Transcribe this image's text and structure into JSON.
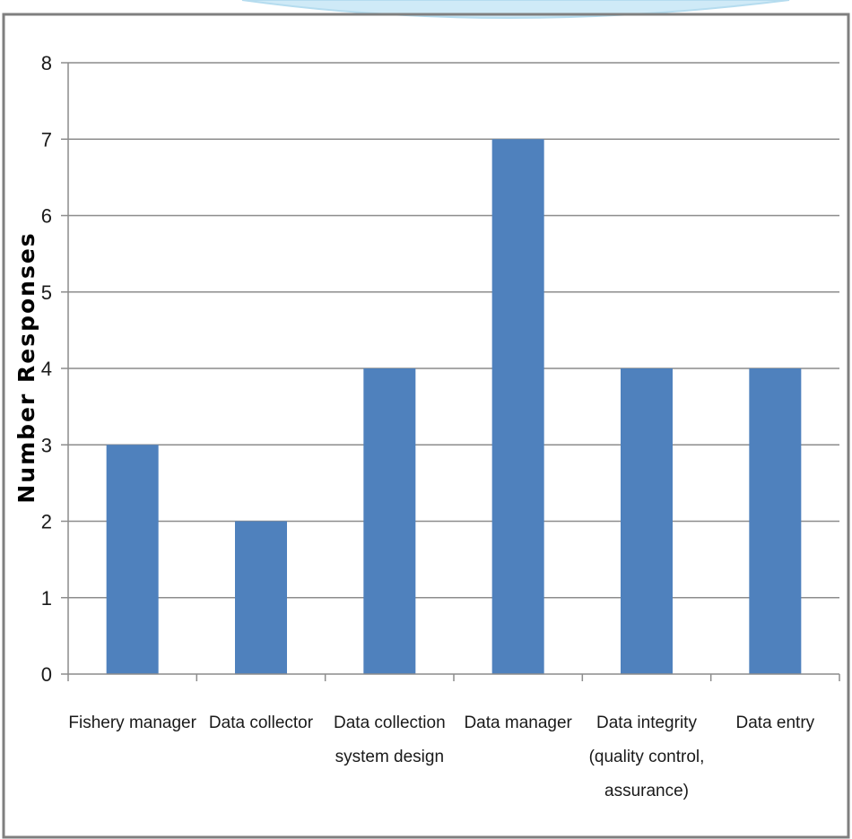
{
  "colors": {
    "bar": "#4f81bd",
    "gridline": "#8c8c8c",
    "axis": "#8c8c8c",
    "frame": "#7f7f7f",
    "decor_arc": "#cfeaf7"
  },
  "chart_data": {
    "type": "bar",
    "title": "",
    "xlabel": "",
    "ylabel": "Number Responses",
    "ylim": [
      0,
      8
    ],
    "yticks": [
      "0",
      "1",
      "2",
      "3",
      "4",
      "5",
      "6",
      "7",
      "8"
    ],
    "grid": true,
    "legend": "none",
    "categories": [
      [
        "Fishery manager"
      ],
      [
        "Data collector"
      ],
      [
        "Data collection",
        "system design"
      ],
      [
        "Data manager"
      ],
      [
        "Data integrity",
        "(quality control,",
        "assurance)"
      ],
      [
        "Data entry"
      ]
    ],
    "values": [
      3,
      2,
      4,
      7,
      4,
      4
    ]
  }
}
